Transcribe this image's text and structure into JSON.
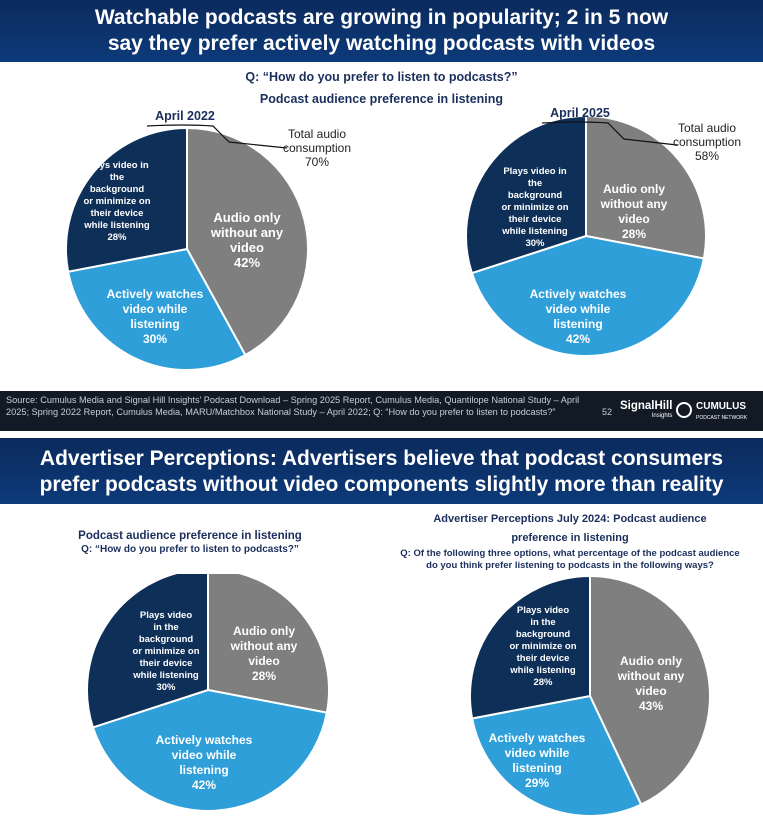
{
  "slide1": {
    "title_line1": "Watchable podcasts are growing in popularity; 2 in 5 now",
    "title_line2": "say they prefer actively watching podcasts with videos",
    "question": "Q: “How do you prefer to listen to podcasts?”",
    "subtitle": "Podcast audience preference in listening",
    "footer": {
      "source": "Source: Cumulus Media and Signal Hill Insights’ Podcast Download – Spring 2025 Report, Cumulus Media, Quantilope National Study – April 2025; Spring 2022 Report, Cumulus Media, MARU/Matchbox National Study – April 2022; Q: “How do you prefer to listen to podcasts?”",
      "page": "52",
      "logo_signalhill": "SignalHill",
      "logo_signalhill_sub": "Insights",
      "logo_cumulus": "CUMULUS",
      "logo_cumulus_sub": "PODCAST NETWORK"
    }
  },
  "slide2": {
    "title_line1": "Advertiser Perceptions: Advertisers believe that podcast consumers",
    "title_line2": "prefer podcasts without video components slightly more than reality",
    "left_subtitle": "Podcast audience preference in listening",
    "left_question": "Q: “How do you prefer to listen to podcasts?”",
    "right_subtitle_line1": "Advertiser Perceptions July 2024: Podcast audience",
    "right_subtitle_line2": "preference in listening",
    "right_question_line1": "Q: Of the following three options, what percentage of the podcast audience",
    "right_question_line2": "do you think prefer listening to podcasts in the following ways?"
  },
  "colors": {
    "gray": "#7f7f7f",
    "light_blue": "#2e9fd9",
    "navy": "#0e2f58",
    "banner": "#0b2a5c"
  },
  "chart_data": [
    {
      "type": "pie",
      "title": "April 2022",
      "annotation": {
        "label_line1": "Total audio",
        "label_line2": "consumption",
        "value": "70%"
      },
      "slices": [
        {
          "lines": [
            "Audio only",
            "without any",
            "video",
            "42%"
          ],
          "value": 42,
          "color": "gray"
        },
        {
          "lines": [
            "Actively watches",
            "video while",
            "listening",
            "30%"
          ],
          "value": 30,
          "color": "light_blue"
        },
        {
          "lines": [
            "Plays video in",
            "the",
            "background",
            "or minimize on",
            "their device",
            "while listening",
            "28%"
          ],
          "value": 28,
          "color": "navy"
        }
      ]
    },
    {
      "type": "pie",
      "title": "April 2025",
      "annotation": {
        "label_line1": "Total audio",
        "label_line2": "consumption",
        "value": "58%"
      },
      "slices": [
        {
          "lines": [
            "Audio only",
            "without any",
            "video",
            "28%"
          ],
          "value": 28,
          "color": "gray"
        },
        {
          "lines": [
            "Actively watches",
            "video while",
            "listening",
            "42%"
          ],
          "value": 42,
          "color": "light_blue"
        },
        {
          "lines": [
            "Plays video in",
            "the",
            "background",
            "or minimize on",
            "their device",
            "while listening",
            "30%"
          ],
          "value": 30,
          "color": "navy"
        }
      ]
    },
    {
      "type": "pie",
      "title": "",
      "slices": [
        {
          "lines": [
            "Audio only",
            "without any",
            "video",
            "28%"
          ],
          "value": 28,
          "color": "gray"
        },
        {
          "lines": [
            "Actively watches",
            "video while",
            "listening",
            "42%"
          ],
          "value": 42,
          "color": "light_blue"
        },
        {
          "lines": [
            "Plays video",
            "in the",
            "background",
            "or minimize on",
            "their device",
            "while listening",
            "30%"
          ],
          "value": 30,
          "color": "navy"
        }
      ]
    },
    {
      "type": "pie",
      "title": "",
      "slices": [
        {
          "lines": [
            "Audio only",
            "without any",
            "video",
            "43%"
          ],
          "value": 43,
          "color": "gray"
        },
        {
          "lines": [
            "Actively watches",
            "video while",
            "listening",
            "29%"
          ],
          "value": 29,
          "color": "light_blue"
        },
        {
          "lines": [
            "Plays video",
            "in the",
            "background",
            "or minimize on",
            "their device",
            "while listening",
            "28%"
          ],
          "value": 28,
          "color": "navy"
        }
      ]
    }
  ]
}
